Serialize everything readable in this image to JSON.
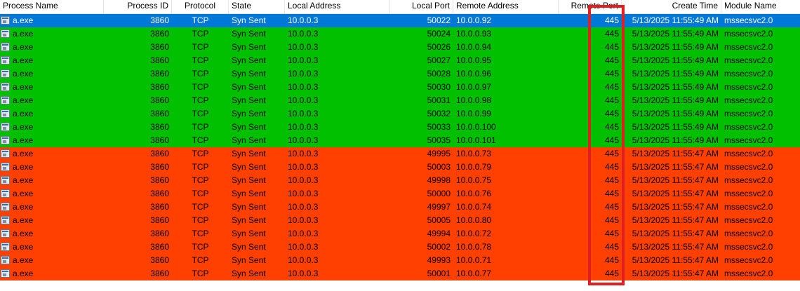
{
  "columns": [
    "Process Name",
    "Process ID",
    "Protocol",
    "State",
    "Local Address",
    "Local Port",
    "Remote Address",
    "Remote Port",
    "Create Time",
    "Module Name"
  ],
  "colors": {
    "selected": "#0078d7",
    "green": "#00c000",
    "red": "#ff4000",
    "highlight_box": "#e02020"
  },
  "rows": [
    {
      "status": "selected",
      "name": "a.exe",
      "pid": "3860",
      "protocol": "TCP",
      "state": "Syn Sent",
      "local_address": "10.0.0.3",
      "local_port": "50022",
      "remote_address": "10.0.0.92",
      "remote_port": "445",
      "create_time": "5/13/2025 11:55:49 AM",
      "module": "mssecsvc2.0"
    },
    {
      "status": "green",
      "name": "a.exe",
      "pid": "3860",
      "protocol": "TCP",
      "state": "Syn Sent",
      "local_address": "10.0.0.3",
      "local_port": "50024",
      "remote_address": "10.0.0.93",
      "remote_port": "445",
      "create_time": "5/13/2025 11:55:49 AM",
      "module": "mssecsvc2.0"
    },
    {
      "status": "green",
      "name": "a.exe",
      "pid": "3860",
      "protocol": "TCP",
      "state": "Syn Sent",
      "local_address": "10.0.0.3",
      "local_port": "50026",
      "remote_address": "10.0.0.94",
      "remote_port": "445",
      "create_time": "5/13/2025 11:55:49 AM",
      "module": "mssecsvc2.0"
    },
    {
      "status": "green",
      "name": "a.exe",
      "pid": "3860",
      "protocol": "TCP",
      "state": "Syn Sent",
      "local_address": "10.0.0.3",
      "local_port": "50027",
      "remote_address": "10.0.0.95",
      "remote_port": "445",
      "create_time": "5/13/2025 11:55:49 AM",
      "module": "mssecsvc2.0"
    },
    {
      "status": "green",
      "name": "a.exe",
      "pid": "3860",
      "protocol": "TCP",
      "state": "Syn Sent",
      "local_address": "10.0.0.3",
      "local_port": "50028",
      "remote_address": "10.0.0.96",
      "remote_port": "445",
      "create_time": "5/13/2025 11:55:49 AM",
      "module": "mssecsvc2.0"
    },
    {
      "status": "green",
      "name": "a.exe",
      "pid": "3860",
      "protocol": "TCP",
      "state": "Syn Sent",
      "local_address": "10.0.0.3",
      "local_port": "50030",
      "remote_address": "10.0.0.97",
      "remote_port": "445",
      "create_time": "5/13/2025 11:55:49 AM",
      "module": "mssecsvc2.0"
    },
    {
      "status": "green",
      "name": "a.exe",
      "pid": "3860",
      "protocol": "TCP",
      "state": "Syn Sent",
      "local_address": "10.0.0.3",
      "local_port": "50031",
      "remote_address": "10.0.0.98",
      "remote_port": "445",
      "create_time": "5/13/2025 11:55:49 AM",
      "module": "mssecsvc2.0"
    },
    {
      "status": "green",
      "name": "a.exe",
      "pid": "3860",
      "protocol": "TCP",
      "state": "Syn Sent",
      "local_address": "10.0.0.3",
      "local_port": "50032",
      "remote_address": "10.0.0.99",
      "remote_port": "445",
      "create_time": "5/13/2025 11:55:49 AM",
      "module": "mssecsvc2.0"
    },
    {
      "status": "green",
      "name": "a.exe",
      "pid": "3860",
      "protocol": "TCP",
      "state": "Syn Sent",
      "local_address": "10.0.0.3",
      "local_port": "50033",
      "remote_address": "10.0.0.100",
      "remote_port": "445",
      "create_time": "5/13/2025 11:55:49 AM",
      "module": "mssecsvc2.0"
    },
    {
      "status": "green",
      "name": "a.exe",
      "pid": "3860",
      "protocol": "TCP",
      "state": "Syn Sent",
      "local_address": "10.0.0.3",
      "local_port": "50035",
      "remote_address": "10.0.0.101",
      "remote_port": "445",
      "create_time": "5/13/2025 11:55:49 AM",
      "module": "mssecsvc2.0"
    },
    {
      "status": "red",
      "name": "a.exe",
      "pid": "3860",
      "protocol": "TCP",
      "state": "Syn Sent",
      "local_address": "10.0.0.3",
      "local_port": "49995",
      "remote_address": "10.0.0.73",
      "remote_port": "445",
      "create_time": "5/13/2025 11:55:47 AM",
      "module": "mssecsvc2.0"
    },
    {
      "status": "red",
      "name": "a.exe",
      "pid": "3860",
      "protocol": "TCP",
      "state": "Syn Sent",
      "local_address": "10.0.0.3",
      "local_port": "50003",
      "remote_address": "10.0.0.79",
      "remote_port": "445",
      "create_time": "5/13/2025 11:55:47 AM",
      "module": "mssecsvc2.0"
    },
    {
      "status": "red",
      "name": "a.exe",
      "pid": "3860",
      "protocol": "TCP",
      "state": "Syn Sent",
      "local_address": "10.0.0.3",
      "local_port": "49998",
      "remote_address": "10.0.0.75",
      "remote_port": "445",
      "create_time": "5/13/2025 11:55:47 AM",
      "module": "mssecsvc2.0"
    },
    {
      "status": "red",
      "name": "a.exe",
      "pid": "3860",
      "protocol": "TCP",
      "state": "Syn Sent",
      "local_address": "10.0.0.3",
      "local_port": "50000",
      "remote_address": "10.0.0.76",
      "remote_port": "445",
      "create_time": "5/13/2025 11:55:47 AM",
      "module": "mssecsvc2.0"
    },
    {
      "status": "red",
      "name": "a.exe",
      "pid": "3860",
      "protocol": "TCP",
      "state": "Syn Sent",
      "local_address": "10.0.0.3",
      "local_port": "49997",
      "remote_address": "10.0.0.74",
      "remote_port": "445",
      "create_time": "5/13/2025 11:55:47 AM",
      "module": "mssecsvc2.0"
    },
    {
      "status": "red",
      "name": "a.exe",
      "pid": "3860",
      "protocol": "TCP",
      "state": "Syn Sent",
      "local_address": "10.0.0.3",
      "local_port": "50005",
      "remote_address": "10.0.0.80",
      "remote_port": "445",
      "create_time": "5/13/2025 11:55:47 AM",
      "module": "mssecsvc2.0"
    },
    {
      "status": "red",
      "name": "a.exe",
      "pid": "3860",
      "protocol": "TCP",
      "state": "Syn Sent",
      "local_address": "10.0.0.3",
      "local_port": "49994",
      "remote_address": "10.0.0.72",
      "remote_port": "445",
      "create_time": "5/13/2025 11:55:47 AM",
      "module": "mssecsvc2.0"
    },
    {
      "status": "red",
      "name": "a.exe",
      "pid": "3860",
      "protocol": "TCP",
      "state": "Syn Sent",
      "local_address": "10.0.0.3",
      "local_port": "50002",
      "remote_address": "10.0.0.78",
      "remote_port": "445",
      "create_time": "5/13/2025 11:55:47 AM",
      "module": "mssecsvc2.0"
    },
    {
      "status": "red",
      "name": "a.exe",
      "pid": "3860",
      "protocol": "TCP",
      "state": "Syn Sent",
      "local_address": "10.0.0.3",
      "local_port": "49993",
      "remote_address": "10.0.0.71",
      "remote_port": "445",
      "create_time": "5/13/2025 11:55:47 AM",
      "module": "mssecsvc2.0"
    },
    {
      "status": "red",
      "name": "a.exe",
      "pid": "3860",
      "protocol": "TCP",
      "state": "Syn Sent",
      "local_address": "10.0.0.3",
      "local_port": "50001",
      "remote_address": "10.0.0.77",
      "remote_port": "445",
      "create_time": "5/13/2025 11:55:47 AM",
      "module": "mssecsvc2.0"
    }
  ]
}
